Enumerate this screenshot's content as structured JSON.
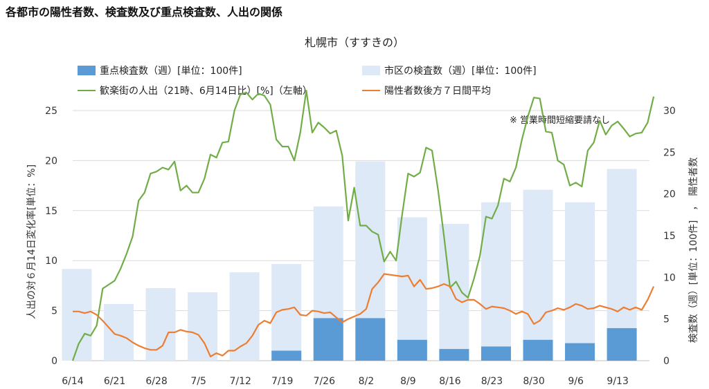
{
  "page_title": "各都市の陽性者数、検査数及び重点検査数、人出の関係",
  "chart_data": {
    "type": "bar+line",
    "title": "札幌市（すすきの）",
    "annotation": "※ 営業時間短縮要請なし",
    "ylabel_left": "人出の対６月14日変化率[単位：%]",
    "ylabel_right": "検査数（週）[単位：100件]　，　陽性者数",
    "ylim_left": [
      0,
      25
    ],
    "ylim_right": [
      0,
      30
    ],
    "yticks_left": [
      "0",
      "5",
      "10",
      "15",
      "20",
      "25"
    ],
    "yticks_right": [
      "0",
      "5",
      "10",
      "15",
      "20",
      "25",
      "30"
    ],
    "x_tick_labels": [
      "6/14",
      "6/21",
      "6/28",
      "7/5",
      "7/12",
      "7/19",
      "7/26",
      "8/2",
      "8/9",
      "8/16",
      "8/23",
      "8/30",
      "9/6",
      "9/13"
    ],
    "legend": {
      "priority_tests": "重点検査数（週）[単位：100件]",
      "city_tests": "市区の検査数（週）[単位：100件]",
      "crowd": "歓楽街の人出（21時、6月14日比）[%]（左軸）",
      "positives": "陽性者数後方７日間平均"
    },
    "colors": {
      "priority_tests": "#5b9bd5",
      "city_tests": "#dde9f7",
      "crowd": "#70ad47",
      "positives": "#ed7d31"
    },
    "bars_week_start_day": [
      0,
      7,
      14,
      21,
      28,
      35,
      42,
      49,
      56,
      63,
      70,
      77,
      84,
      91
    ],
    "city_tests": [
      11.0,
      6.8,
      8.7,
      8.2,
      10.6,
      11.6,
      18.5,
      23.9,
      17.2,
      16.4,
      19.0,
      20.5,
      19.0,
      23.0
    ],
    "priority_tests": [
      0,
      0,
      0,
      0,
      0,
      1.2,
      5.1,
      5.1,
      2.5,
      1.4,
      1.7,
      2.5,
      2.1,
      3.9
    ],
    "crowd_daily": [
      0.0,
      1.7,
      2.7,
      2.5,
      3.5,
      7.2,
      7.6,
      8.0,
      9.2,
      10.7,
      12.4,
      16.0,
      16.8,
      18.7,
      18.9,
      19.3,
      19.1,
      19.9,
      17.0,
      17.5,
      16.8,
      16.8,
      18.2,
      20.6,
      20.3,
      21.8,
      21.9,
      25.0,
      26.6,
      26.8,
      26.1,
      26.7,
      26.5,
      25.6,
      22.1,
      21.4,
      21.4,
      20.0,
      22.8,
      27.0,
      22.8,
      23.8,
      23.3,
      22.7,
      23.0,
      20.5,
      14.0,
      17.3,
      13.5,
      13.5,
      12.9,
      12.6,
      9.9,
      10.9,
      10.0,
      14.6,
      18.7,
      18.4,
      18.8,
      21.3,
      21.0,
      17.1,
      12.4,
      7.3,
      7.9,
      6.8,
      6.3,
      8.2,
      10.5,
      14.4,
      14.2,
      15.5,
      18.2,
      17.9,
      19.3,
      22.1,
      24.4,
      26.3,
      26.2,
      22.9,
      22.8,
      20.0,
      19.6,
      17.5,
      17.8,
      17.4,
      21.0,
      21.8,
      24.0,
      22.6,
      23.5,
      23.9,
      23.2,
      22.4,
      22.7,
      22.8,
      23.8,
      26.4
    ],
    "positives_daily": [
      5.9,
      5.9,
      5.7,
      5.9,
      5.5,
      4.8,
      4.0,
      3.2,
      3.0,
      2.7,
      2.2,
      1.8,
      1.5,
      1.3,
      1.3,
      1.8,
      3.4,
      3.4,
      3.7,
      3.5,
      3.4,
      3.1,
      2.1,
      0.5,
      0.9,
      0.6,
      1.2,
      1.2,
      1.7,
      2.1,
      3.0,
      4.3,
      4.8,
      4.5,
      5.8,
      6.1,
      6.2,
      6.4,
      5.5,
      5.4,
      6.0,
      5.9,
      5.7,
      5.8,
      5.2,
      4.6,
      5.0,
      5.3,
      5.6,
      6.2,
      8.6,
      9.4,
      10.4,
      10.3,
      10.2,
      10.1,
      10.2,
      8.9,
      9.7,
      8.6,
      8.7,
      8.9,
      9.2,
      8.9,
      7.4,
      7.0,
      7.3,
      7.3,
      6.8,
      6.2,
      6.5,
      6.4,
      6.3,
      6.0,
      5.6,
      5.9,
      5.6,
      4.4,
      4.8,
      5.8,
      6.0,
      6.3,
      6.1,
      6.4,
      6.8,
      6.6,
      6.2,
      6.3,
      6.6,
      6.4,
      6.2,
      5.9,
      6.4,
      6.1,
      6.4,
      6.1,
      7.3,
      8.9
    ]
  }
}
